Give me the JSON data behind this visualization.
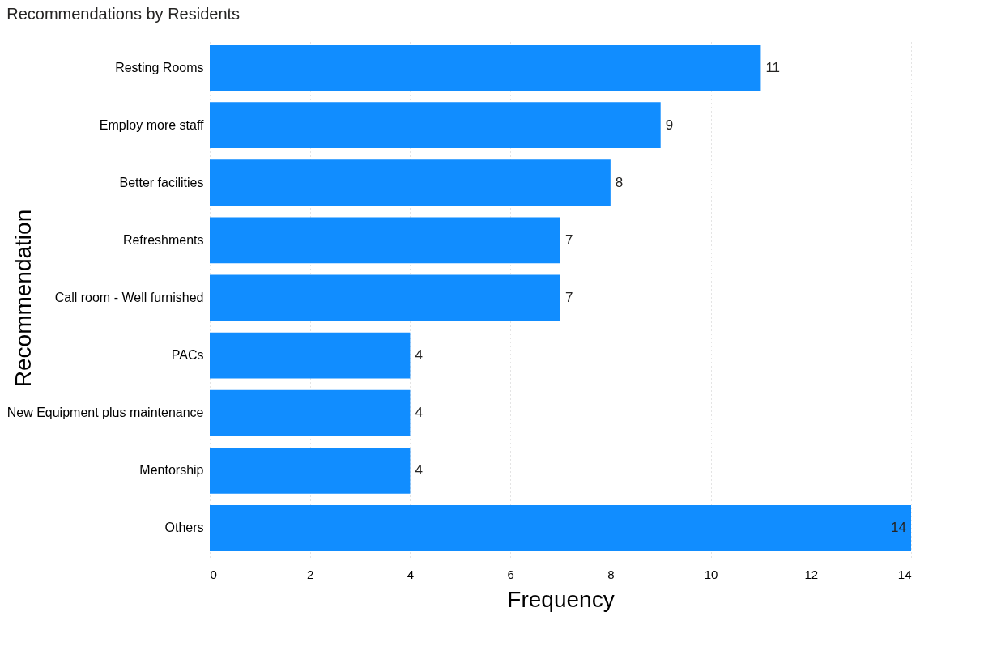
{
  "chart_data": {
    "type": "bar",
    "orientation": "horizontal",
    "title": "Recommendations by Residents",
    "xlabel": "Frequency",
    "ylabel": "Recommendation",
    "categories": [
      "Resting Rooms",
      "Employ more staff",
      "Better facilities",
      "Refreshments",
      "Call room - Well furnished",
      "PACs",
      "New Equipment plus maintenance",
      "Mentorship",
      "Others"
    ],
    "values": [
      11,
      9,
      8,
      7,
      7,
      4,
      4,
      4,
      14
    ],
    "color": "#118dff",
    "xlim": [
      0,
      14
    ],
    "xticks": [
      0,
      2,
      4,
      6,
      8,
      10,
      12,
      14
    ],
    "grid": "x",
    "data_labels": true
  }
}
